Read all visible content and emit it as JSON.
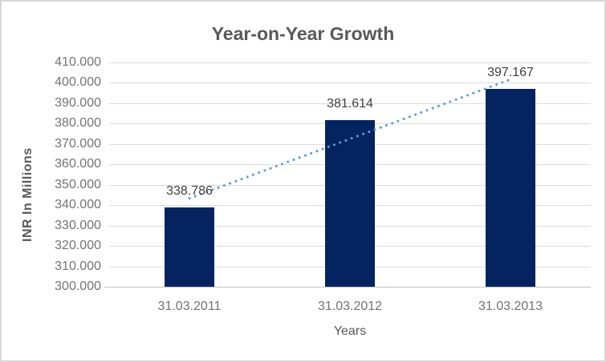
{
  "chart_data": {
    "type": "bar",
    "title": "Year-on-Year Growth",
    "xlabel": "Years",
    "ylabel": "INR In Millions",
    "categories": [
      "31.03.2011",
      "31.03.2012",
      "31.03.2013"
    ],
    "values": [
      338.786,
      381.614,
      397.167
    ],
    "data_labels": [
      "338.786",
      "381.614",
      "397.167"
    ],
    "y_tick_values": [
      300,
      310,
      320,
      330,
      340,
      350,
      360,
      370,
      380,
      390,
      400,
      410
    ],
    "y_tick_labels": [
      "300.000",
      "310.000",
      "320.000",
      "330.000",
      "340.000",
      "350.000",
      "360.000",
      "370.000",
      "380.000",
      "390.000",
      "400.000",
      "410.000"
    ],
    "ylim": [
      300,
      410
    ],
    "grid": true,
    "legend": false,
    "trendline": {
      "type": "linear",
      "style": "dotted"
    }
  },
  "colors": {
    "bar": "#062361",
    "trendline": "#5B9BD5",
    "gridline": "#DCDCDC",
    "axis_line": "#BFBFBF",
    "title_text": "#595959",
    "tick_text": "#737373",
    "data_label_text": "#404040",
    "border": "#D6D6D6",
    "background": "#FFFFFF"
  }
}
